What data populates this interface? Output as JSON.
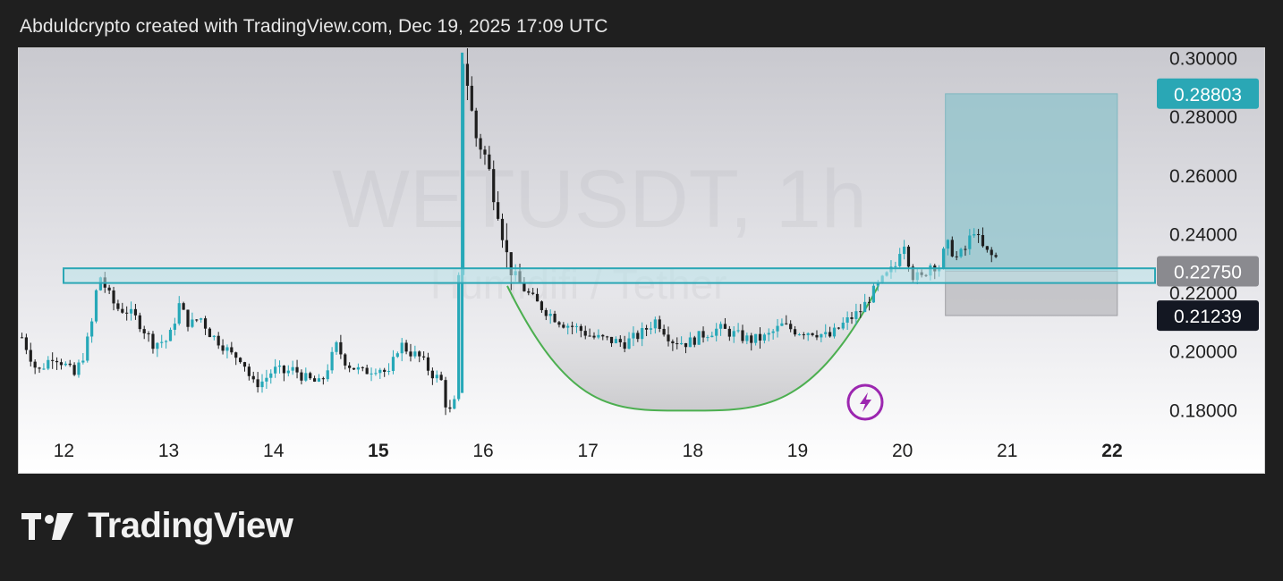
{
  "header": {
    "text": "Abduldcrypto created with TradingView.com, Dec 19, 2025 17:09 UTC"
  },
  "watermark": {
    "symbol": "WETUSDT, 1h",
    "name": "Humidifi / Tether"
  },
  "footer": {
    "brand": "TradingView"
  },
  "colors": {
    "candle": "#1e1e1e",
    "candle_up": "#26a8b8",
    "zone_fill": "#b9e3ea",
    "zone_stroke": "#2aa7b5",
    "target_fill": "#8fc3cb",
    "stop_fill": "#b9b9bd",
    "cup_stroke": "#4caf50",
    "last_price_bg": "#2aa7b5",
    "zone_label_bg": "#8a8a8f",
    "stop_label_bg": "#131722",
    "icon_purple": "#9c27b0"
  },
  "chart_data": {
    "type": "candlestick",
    "symbol": "WETUSDT, 1h",
    "x_ticks": [
      {
        "label": "12",
        "day": 12,
        "bold": false
      },
      {
        "label": "13",
        "day": 13,
        "bold": false
      },
      {
        "label": "14",
        "day": 14,
        "bold": false
      },
      {
        "label": "15",
        "day": 15,
        "bold": true
      },
      {
        "label": "16",
        "day": 16,
        "bold": false
      },
      {
        "label": "17",
        "day": 17,
        "bold": false
      },
      {
        "label": "18",
        "day": 18,
        "bold": false
      },
      {
        "label": "19",
        "day": 19,
        "bold": false
      },
      {
        "label": "20",
        "day": 20,
        "bold": false
      },
      {
        "label": "21",
        "day": 21,
        "bold": false
      },
      {
        "label": "22",
        "day": 22,
        "bold": true
      }
    ],
    "y_ticks": [
      "0.30000",
      "0.28000",
      "0.26000",
      "0.24000",
      "0.22000",
      "0.20000",
      "0.18000"
    ],
    "y_tick_values": [
      0.3,
      0.28,
      0.26,
      0.24,
      0.22,
      0.2,
      0.18
    ],
    "ylim": [
      0.1725,
      0.3035
    ],
    "xlim_days": [
      11.57,
      22.41
    ],
    "price_labels": [
      {
        "text": "0.28803",
        "value": 0.28803,
        "kind": "last"
      },
      {
        "text": "0.22750",
        "value": 0.2275,
        "kind": "zone"
      },
      {
        "text": "0.21239",
        "value": 0.21239,
        "kind": "stop"
      }
    ],
    "price_path": [
      [
        11.6,
        0.205
      ],
      [
        11.75,
        0.193
      ],
      [
        11.9,
        0.199
      ],
      [
        12.0,
        0.196
      ],
      [
        12.1,
        0.192
      ],
      [
        12.2,
        0.2
      ],
      [
        12.3,
        0.215
      ],
      [
        12.32,
        0.228
      ],
      [
        12.42,
        0.22
      ],
      [
        12.5,
        0.215
      ],
      [
        12.6,
        0.214
      ],
      [
        12.7,
        0.211
      ],
      [
        12.85,
        0.203
      ],
      [
        13.0,
        0.204
      ],
      [
        13.1,
        0.216
      ],
      [
        13.2,
        0.209
      ],
      [
        13.3,
        0.212
      ],
      [
        13.4,
        0.206
      ],
      [
        13.5,
        0.203
      ],
      [
        13.6,
        0.199
      ],
      [
        13.7,
        0.198
      ],
      [
        13.8,
        0.189
      ],
      [
        13.9,
        0.19
      ],
      [
        14.0,
        0.194
      ],
      [
        14.1,
        0.193
      ],
      [
        14.2,
        0.194
      ],
      [
        14.3,
        0.191
      ],
      [
        14.45,
        0.189
      ],
      [
        14.6,
        0.202
      ],
      [
        14.7,
        0.196
      ],
      [
        14.85,
        0.193
      ],
      [
        15.0,
        0.195
      ],
      [
        15.1,
        0.192
      ],
      [
        15.2,
        0.203
      ],
      [
        15.3,
        0.2
      ],
      [
        15.4,
        0.198
      ],
      [
        15.5,
        0.193
      ],
      [
        15.6,
        0.19
      ],
      [
        15.65,
        0.181
      ],
      [
        15.7,
        0.179
      ],
      [
        15.75,
        0.186
      ],
      [
        15.8,
        0.302
      ],
      [
        15.85,
        0.292
      ],
      [
        15.92,
        0.274
      ],
      [
        16.0,
        0.269
      ],
      [
        16.08,
        0.258
      ],
      [
        16.16,
        0.247
      ],
      [
        16.22,
        0.233
      ],
      [
        16.3,
        0.226
      ],
      [
        16.4,
        0.221
      ],
      [
        16.5,
        0.217
      ],
      [
        16.6,
        0.214
      ],
      [
        16.75,
        0.21
      ],
      [
        16.9,
        0.208
      ],
      [
        17.05,
        0.205
      ],
      [
        17.2,
        0.204
      ],
      [
        17.35,
        0.203
      ],
      [
        17.5,
        0.206
      ],
      [
        17.65,
        0.211
      ],
      [
        17.8,
        0.204
      ],
      [
        17.95,
        0.203
      ],
      [
        18.1,
        0.206
      ],
      [
        18.25,
        0.208
      ],
      [
        18.4,
        0.206
      ],
      [
        18.55,
        0.204
      ],
      [
        18.7,
        0.205
      ],
      [
        18.85,
        0.209
      ],
      [
        19.0,
        0.207
      ],
      [
        19.15,
        0.207
      ],
      [
        19.3,
        0.205
      ],
      [
        19.45,
        0.21
      ],
      [
        19.6,
        0.214
      ],
      [
        19.75,
        0.222
      ],
      [
        19.85,
        0.226
      ],
      [
        19.95,
        0.23
      ],
      [
        20.0,
        0.24
      ],
      [
        20.05,
        0.232
      ],
      [
        20.1,
        0.226
      ],
      [
        20.2,
        0.225
      ],
      [
        20.25,
        0.23
      ],
      [
        20.35,
        0.229
      ],
      [
        20.42,
        0.237
      ],
      [
        20.52,
        0.232
      ],
      [
        20.6,
        0.235
      ],
      [
        20.68,
        0.242
      ],
      [
        20.75,
        0.236
      ],
      [
        20.83,
        0.233
      ],
      [
        20.9,
        0.232
      ]
    ],
    "resistance_zone": {
      "y_top": 0.2285,
      "y_bottom": 0.2235,
      "x_start": 11.57,
      "x_end": 22.41
    },
    "position_box": {
      "x_start": 20.41,
      "x_end": 22.05,
      "entry": 0.2275,
      "target": 0.288,
      "stop": 0.2124
    },
    "cup_curve": {
      "x_start": 16.23,
      "x_bottom": 17.93,
      "x_end": 19.77,
      "y_rim": 0.2225,
      "y_bottom": 0.18
    }
  }
}
